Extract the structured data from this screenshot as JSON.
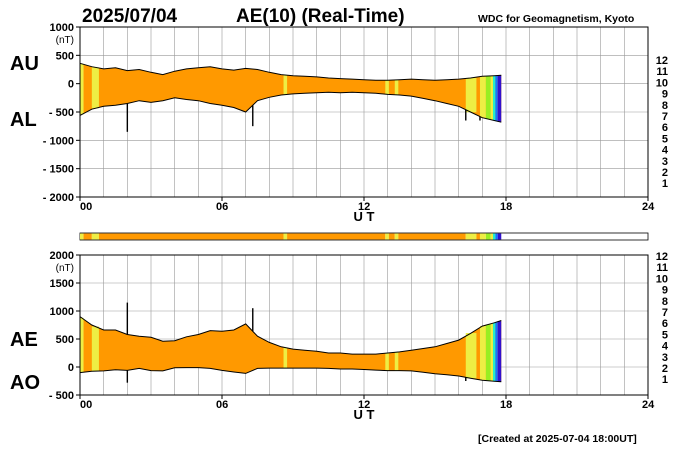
{
  "header": {
    "date": "2025/07/04",
    "title": "AE(10) (Real-Time)",
    "source": "WDC for Geomagnetism, Kyoto"
  },
  "footer": {
    "created": "[Created at 2025-07-04 18:00UT]"
  },
  "legend": {
    "levels": [
      "12",
      "11",
      "10",
      "9",
      "8",
      "7",
      "6",
      "5",
      "4",
      "3",
      "2",
      "1"
    ],
    "colors": [
      "#ff1177",
      "#ee2200",
      "#ff9900",
      "#eeee44",
      "#99ee22",
      "#22eecc",
      "#1177ff",
      "#3311cc",
      "#cc22cc",
      "#222222",
      "#777777",
      "#bbbbbb"
    ]
  },
  "chart_data": [
    {
      "type": "area",
      "panel": "AU/AL",
      "series_labels": [
        "AU",
        "AL"
      ],
      "yunit": "(nT)",
      "yticks": [
        1000,
        500,
        0,
        -500,
        -1000,
        -1500,
        -2000
      ],
      "ytick_labels": [
        "1000",
        "500",
        "0",
        "- 500",
        "- 1000",
        "- 1500",
        "- 2000"
      ],
      "ylim": [
        -2000,
        1000
      ],
      "xlabel": "U T",
      "xticks": [
        0,
        6,
        12,
        18,
        24
      ],
      "xtick_labels": [
        "00",
        "06",
        "12",
        "18",
        "24"
      ],
      "xlim": [
        0,
        24
      ],
      "grid": true,
      "x": [
        0,
        0.5,
        1,
        1.5,
        2,
        2.5,
        3,
        3.5,
        4,
        4.5,
        5,
        5.5,
        6,
        6.5,
        7,
        7.5,
        8,
        8.5,
        9,
        9.5,
        10,
        10.5,
        11,
        11.5,
        12,
        12.5,
        13,
        13.5,
        14,
        14.5,
        15,
        15.5,
        16,
        16.5,
        17,
        17.5,
        17.8
      ],
      "upper_values": [
        360,
        300,
        260,
        280,
        230,
        250,
        200,
        160,
        220,
        260,
        280,
        300,
        260,
        240,
        270,
        250,
        200,
        160,
        140,
        130,
        120,
        100,
        90,
        80,
        70,
        60,
        60,
        70,
        80,
        70,
        60,
        70,
        80,
        100,
        130,
        140,
        150
      ],
      "lower_values": [
        -560,
        -450,
        -400,
        -380,
        -350,
        -300,
        -330,
        -300,
        -250,
        -280,
        -300,
        -350,
        -380,
        -420,
        -500,
        -300,
        -240,
        -200,
        -180,
        -170,
        -160,
        -150,
        -160,
        -150,
        -160,
        -170,
        -190,
        -200,
        -220,
        -260,
        -300,
        -350,
        -400,
        -500,
        -600,
        -650,
        -680
      ],
      "spikes": [
        {
          "x": 2.0,
          "value": -850
        },
        {
          "x": 7.3,
          "value": -750
        },
        {
          "x": 16.3,
          "value": -650
        },
        {
          "x": 16.9,
          "value": -650
        }
      ]
    },
    {
      "type": "area",
      "panel": "AE/AO",
      "series_labels": [
        "AE",
        "AO"
      ],
      "yunit": "(nT)",
      "yticks": [
        2000,
        1500,
        1000,
        500,
        0,
        -500
      ],
      "ytick_labels": [
        "2000",
        "1500",
        "1000",
        "500",
        "0",
        "- 500"
      ],
      "ylim": [
        -500,
        2000
      ],
      "xlabel": "U T",
      "xticks": [
        0,
        6,
        12,
        18,
        24
      ],
      "xtick_labels": [
        "00",
        "06",
        "12",
        "18",
        "24"
      ],
      "xlim": [
        0,
        24
      ],
      "grid": true,
      "x": [
        0,
        0.5,
        1,
        1.5,
        2,
        2.5,
        3,
        3.5,
        4,
        4.5,
        5,
        5.5,
        6,
        6.5,
        7,
        7.5,
        8,
        8.5,
        9,
        9.5,
        10,
        10.5,
        11,
        11.5,
        12,
        12.5,
        13,
        13.5,
        14,
        14.5,
        15,
        15.5,
        16,
        16.5,
        17,
        17.5,
        17.8
      ],
      "upper_values": [
        900,
        750,
        660,
        660,
        580,
        550,
        530,
        460,
        470,
        540,
        580,
        650,
        640,
        660,
        770,
        550,
        440,
        360,
        320,
        300,
        280,
        250,
        250,
        230,
        230,
        230,
        250,
        270,
        300,
        330,
        360,
        420,
        480,
        600,
        730,
        790,
        830
      ],
      "lower_values": [
        -100,
        -75,
        -70,
        -50,
        -60,
        -25,
        -65,
        -70,
        -15,
        -10,
        -10,
        -25,
        -60,
        -90,
        -115,
        -25,
        -20,
        -20,
        -20,
        -20,
        -20,
        -25,
        -35,
        -35,
        -45,
        -55,
        -65,
        -65,
        -70,
        -95,
        -120,
        -140,
        -160,
        -200,
        -235,
        -255,
        -265
      ],
      "spikes": [
        {
          "x": 2.0,
          "value": 1150
        },
        {
          "x": 2.0,
          "value": -280
        },
        {
          "x": 7.3,
          "value": 1050
        },
        {
          "x": 16.3,
          "value": -250
        }
      ]
    }
  ],
  "kp_bar": {
    "xlim": [
      0,
      24
    ],
    "segments": [
      {
        "start": 0,
        "end": 0.15,
        "level": "9"
      },
      {
        "start": 0.15,
        "end": 0.5,
        "level": "10"
      },
      {
        "start": 0.5,
        "end": 0.8,
        "level": "9"
      },
      {
        "start": 0.8,
        "end": 8.6,
        "level": "10"
      },
      {
        "start": 8.6,
        "end": 8.75,
        "level": "9"
      },
      {
        "start": 8.75,
        "end": 12.9,
        "level": "10"
      },
      {
        "start": 12.9,
        "end": 13.05,
        "level": "9"
      },
      {
        "start": 13.05,
        "end": 13.3,
        "level": "10"
      },
      {
        "start": 13.3,
        "end": 13.45,
        "level": "9"
      },
      {
        "start": 13.45,
        "end": 16.3,
        "level": "10"
      },
      {
        "start": 16.3,
        "end": 16.75,
        "level": "9"
      },
      {
        "start": 16.75,
        "end": 16.9,
        "level": "10"
      },
      {
        "start": 16.9,
        "end": 17.15,
        "level": "9"
      },
      {
        "start": 17.15,
        "end": 17.35,
        "level": "8"
      },
      {
        "start": 17.35,
        "end": 17.45,
        "level": "9"
      },
      {
        "start": 17.45,
        "end": 17.55,
        "level": "7"
      },
      {
        "start": 17.55,
        "end": 17.65,
        "level": "6"
      },
      {
        "start": 17.65,
        "end": 17.8,
        "level": "5"
      }
    ]
  }
}
